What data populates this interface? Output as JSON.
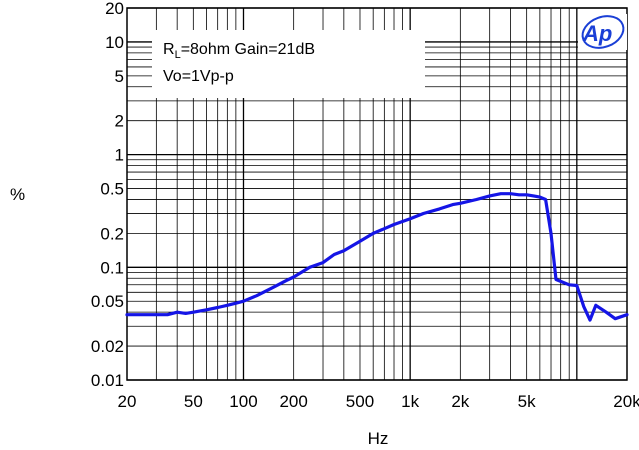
{
  "chart_data": {
    "type": "line",
    "x_scale": "log",
    "y_scale": "log",
    "xlim": [
      20,
      20000
    ],
    "ylim": [
      0.01,
      20
    ],
    "xlabel": "Hz",
    "ylabel": "%",
    "x_ticks": [
      {
        "value": 20,
        "label": "20"
      },
      {
        "value": 50,
        "label": "50"
      },
      {
        "value": 100,
        "label": "100"
      },
      {
        "value": 200,
        "label": "200"
      },
      {
        "value": 500,
        "label": "500"
      },
      {
        "value": 1000,
        "label": "1k"
      },
      {
        "value": 2000,
        "label": "2k"
      },
      {
        "value": 5000,
        "label": "5k"
      },
      {
        "value": 20000,
        "label": "20k"
      }
    ],
    "y_ticks": [
      {
        "value": 0.01,
        "label": "0.01"
      },
      {
        "value": 0.02,
        "label": "0.02"
      },
      {
        "value": 0.05,
        "label": "0.05"
      },
      {
        "value": 0.1,
        "label": "0.1"
      },
      {
        "value": 0.2,
        "label": "0.2"
      },
      {
        "value": 0.5,
        "label": "0.5"
      },
      {
        "value": 1,
        "label": "1"
      },
      {
        "value": 2,
        "label": "2"
      },
      {
        "value": 5,
        "label": "5"
      },
      {
        "value": 10,
        "label": "10"
      },
      {
        "value": 20,
        "label": "20"
      }
    ],
    "grid": true,
    "annotation": {
      "line1_r": "R",
      "line1_sub": "L",
      "line1_rest": "=8ohm Gain=21dB",
      "line2": "Vo=1Vp-p"
    },
    "logo_text": "Ap",
    "colors": {
      "series": "#1515e6",
      "grid": "#000000",
      "logo": "#1a3fd6"
    },
    "series": [
      {
        "x": [
          20,
          25,
          30,
          35,
          40,
          45,
          50,
          60,
          70,
          80,
          90,
          100,
          120,
          150,
          180,
          200,
          250,
          300,
          350,
          400,
          500,
          600,
          700,
          800,
          1000,
          1200,
          1500,
          1800,
          2000,
          2500,
          3000,
          3500,
          4000,
          4500,
          5000,
          5500,
          6000,
          6500,
          7000,
          7500,
          8000,
          9000,
          10000,
          11000,
          12000,
          13000,
          15000,
          17000,
          20000
        ],
        "y": [
          0.038,
          0.038,
          0.038,
          0.038,
          0.04,
          0.039,
          0.04,
          0.042,
          0.044,
          0.046,
          0.048,
          0.05,
          0.056,
          0.066,
          0.076,
          0.082,
          0.1,
          0.11,
          0.13,
          0.14,
          0.17,
          0.2,
          0.22,
          0.24,
          0.27,
          0.3,
          0.33,
          0.36,
          0.37,
          0.4,
          0.43,
          0.45,
          0.45,
          0.44,
          0.44,
          0.43,
          0.42,
          0.4,
          0.2,
          0.078,
          0.075,
          0.07,
          0.069,
          0.045,
          0.034,
          0.046,
          0.04,
          0.035,
          0.038
        ]
      }
    ]
  }
}
